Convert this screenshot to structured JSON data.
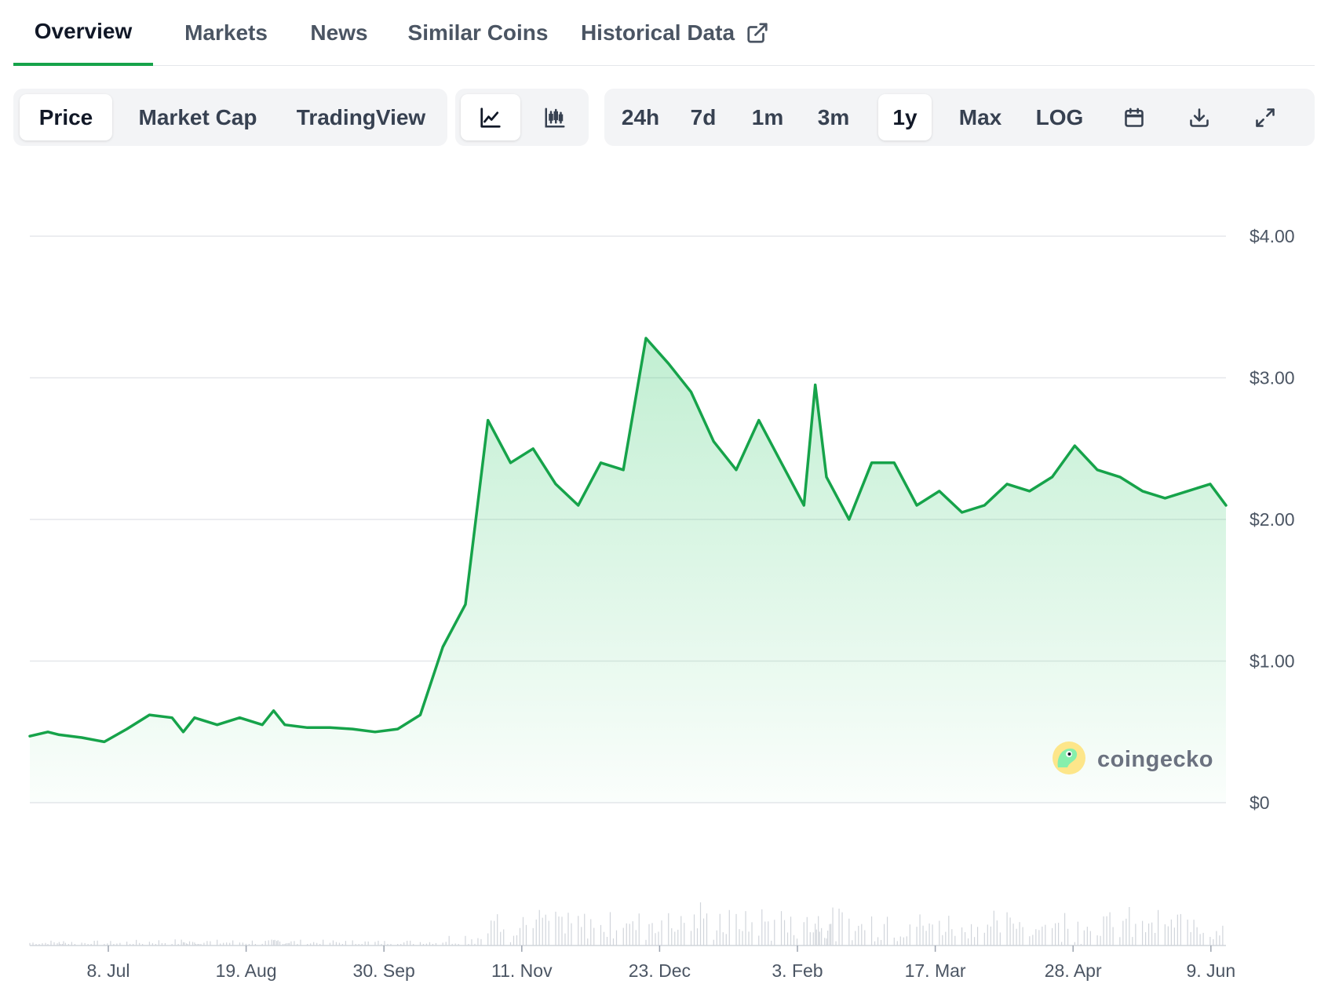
{
  "tabs": [
    {
      "label": "Overview",
      "active": true
    },
    {
      "label": "Markets"
    },
    {
      "label": "News"
    },
    {
      "label": "Similar Coins"
    },
    {
      "label": "Historical Data",
      "icon": "external-link-icon"
    }
  ],
  "toolbar": {
    "metrics": [
      {
        "label": "Price",
        "active": true
      },
      {
        "label": "Market Cap"
      },
      {
        "label": "TradingView"
      }
    ],
    "chart_styles": [
      {
        "icon": "line-chart-icon",
        "active": true
      },
      {
        "icon": "candlestick-chart-icon"
      }
    ],
    "ranges": [
      {
        "label": "24h"
      },
      {
        "label": "7d"
      },
      {
        "label": "1m"
      },
      {
        "label": "3m"
      },
      {
        "label": "1y",
        "active": true
      },
      {
        "label": "Max"
      },
      {
        "label": "LOG"
      }
    ],
    "actions": [
      {
        "icon": "calendar-icon"
      },
      {
        "icon": "download-icon"
      },
      {
        "icon": "expand-icon"
      }
    ]
  },
  "watermark": {
    "text": "coingecko",
    "icon": "coingecko-logo-icon"
  },
  "colors": {
    "line": "#16a34a",
    "fill": "#22c55e",
    "active_tab": "#16a34a",
    "volume": "#d1d5db"
  },
  "chart_data": {
    "type": "area",
    "y_ticks": [
      "$0",
      "$1.00",
      "$2.00",
      "$3.00",
      "$4.00"
    ],
    "ylim": [
      0,
      4
    ],
    "x_ticks": [
      "8. Jul",
      "19. Aug",
      "30. Sep",
      "11. Nov",
      "23. Dec",
      "3. Feb",
      "17. Mar",
      "28. Apr",
      "9. Jun"
    ],
    "xlim_index": [
      -3.3,
      49.7
    ],
    "grid": true,
    "series": [
      {
        "type": "line",
        "x": [
          -3.3,
          -2.5,
          -2,
          -1,
          0,
          1,
          2,
          3,
          3.5,
          4,
          5,
          6,
          7,
          7.5,
          8,
          9,
          10,
          11,
          12,
          13,
          14,
          15,
          16,
          17,
          18,
          19,
          20,
          21,
          22,
          23,
          24,
          25,
          26,
          27,
          28,
          29,
          30,
          31,
          31.5,
          32,
          33,
          34,
          35,
          36,
          37,
          38,
          39,
          40,
          41,
          42,
          43,
          44,
          45,
          46,
          47,
          48,
          49,
          49.7
        ],
        "values": [
          0.47,
          0.5,
          0.48,
          0.46,
          0.43,
          0.52,
          0.62,
          0.6,
          0.5,
          0.6,
          0.55,
          0.6,
          0.55,
          0.65,
          0.55,
          0.53,
          0.53,
          0.52,
          0.5,
          0.52,
          0.62,
          1.1,
          1.4,
          2.7,
          2.4,
          2.5,
          2.25,
          2.1,
          2.4,
          2.35,
          3.28,
          3.1,
          2.9,
          2.55,
          2.35,
          2.7,
          2.4,
          2.1,
          2.95,
          2.3,
          2.0,
          2.4,
          2.4,
          2.1,
          2.2,
          2.05,
          2.1,
          2.25,
          2.2,
          2.3,
          2.52,
          2.35,
          2.3,
          2.2,
          2.15,
          2.2,
          2.25,
          2.1
        ],
        "color": "#16a34a"
      }
    ]
  }
}
